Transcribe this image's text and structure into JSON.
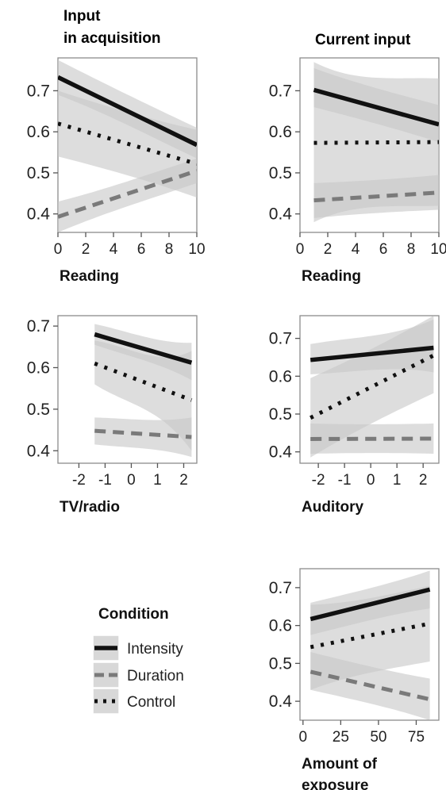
{
  "chart_data": [
    {
      "type": "line",
      "title": "Input\nin acquisition",
      "xlabel": "Reading",
      "xlim": [
        0,
        10
      ],
      "ylim": [
        0.355,
        0.78
      ],
      "xticks": [
        0,
        2,
        4,
        6,
        8,
        10
      ],
      "xtick_labels": [
        "0",
        "2",
        "4",
        "6",
        "8",
        "10"
      ],
      "yticks": [
        0.4,
        0.5,
        0.6,
        0.7
      ],
      "ytick_labels": [
        "0.4",
        "0.5",
        "0.6",
        "0.7"
      ],
      "x": [
        0,
        10
      ],
      "series": [
        {
          "name": "Intensity",
          "values": [
            0.733,
            0.568
          ],
          "ci_lower": [
            0.69,
            0.535
          ],
          "ci_upper": [
            0.775,
            0.61
          ]
        },
        {
          "name": "Duration",
          "values": [
            0.393,
            0.505
          ],
          "ci_lower": [
            0.355,
            0.475
          ],
          "ci_upper": [
            0.43,
            0.535
          ]
        },
        {
          "name": "Control",
          "values": [
            0.62,
            0.522
          ],
          "ci_lower": [
            0.54,
            0.44
          ],
          "ci_upper": [
            0.7,
            0.605
          ]
        }
      ]
    },
    {
      "type": "line",
      "title": "Current input",
      "xlabel": "Reading",
      "xlim": [
        0,
        10
      ],
      "ylim": [
        0.355,
        0.78
      ],
      "xticks": [
        0,
        2,
        4,
        6,
        8,
        10
      ],
      "xtick_labels": [
        "0",
        "2",
        "4",
        "6",
        "8",
        "10"
      ],
      "yticks": [
        0.4,
        0.5,
        0.6,
        0.7
      ],
      "ytick_labels": [
        "0.4",
        "0.5",
        "0.6",
        "0.7"
      ],
      "x": [
        1,
        10
      ],
      "series": [
        {
          "name": "Intensity",
          "values": [
            0.702,
            0.618
          ],
          "ci_lower": [
            0.66,
            0.575
          ],
          "ci_upper": [
            0.755,
            0.665
          ]
        },
        {
          "name": "Duration",
          "values": [
            0.433,
            0.452
          ],
          "ci_lower": [
            0.39,
            0.41
          ],
          "ci_upper": [
            0.475,
            0.495
          ]
        },
        {
          "name": "Control",
          "values": [
            0.573,
            0.575
          ],
          "ci_lower": [
            0.38,
            0.42
          ],
          "ci_upper": [
            0.77,
            0.73
          ]
        }
      ]
    },
    {
      "type": "line",
      "title": "",
      "xlabel": "TV/radio",
      "xlim": [
        -2.8,
        2.5
      ],
      "ylim": [
        0.37,
        0.725
      ],
      "xticks": [
        -2,
        -1,
        0,
        1,
        2
      ],
      "xtick_labels": [
        "-2",
        "-1",
        "0",
        "1",
        "2"
      ],
      "yticks": [
        0.4,
        0.5,
        0.6,
        0.7
      ],
      "ytick_labels": [
        "0.4",
        "0.5",
        "0.6",
        "0.7"
      ],
      "x": [
        -1.4,
        2.3
      ],
      "series": [
        {
          "name": "Intensity",
          "values": [
            0.68,
            0.612
          ],
          "ci_lower": [
            0.655,
            0.57
          ],
          "ci_upper": [
            0.705,
            0.66
          ]
        },
        {
          "name": "Duration",
          "values": [
            0.448,
            0.433
          ],
          "ci_lower": [
            0.415,
            0.385
          ],
          "ci_upper": [
            0.48,
            0.48
          ]
        },
        {
          "name": "Control",
          "values": [
            0.61,
            0.522
          ],
          "ci_lower": [
            0.56,
            0.4
          ],
          "ci_upper": [
            0.665,
            0.64
          ]
        }
      ]
    },
    {
      "type": "line",
      "title": "",
      "xlabel": "Auditory",
      "xlim": [
        -2.7,
        2.6
      ],
      "ylim": [
        0.37,
        0.76
      ],
      "xticks": [
        -2,
        -1,
        0,
        1,
        2
      ],
      "xtick_labels": [
        "-2",
        "-1",
        "0",
        "1",
        "2"
      ],
      "yticks": [
        0.4,
        0.5,
        0.6,
        0.7
      ],
      "ytick_labels": [
        "0.4",
        "0.5",
        "0.6",
        "0.7"
      ],
      "x": [
        -2.3,
        2.4
      ],
      "series": [
        {
          "name": "Intensity",
          "values": [
            0.643,
            0.675
          ],
          "ci_lower": [
            0.605,
            0.61
          ],
          "ci_upper": [
            0.685,
            0.75
          ]
        },
        {
          "name": "Duration",
          "values": [
            0.434,
            0.435
          ],
          "ci_lower": [
            0.395,
            0.395
          ],
          "ci_upper": [
            0.475,
            0.475
          ]
        },
        {
          "name": "Control",
          "values": [
            0.49,
            0.655
          ],
          "ci_lower": [
            0.385,
            0.555
          ],
          "ci_upper": [
            0.595,
            0.76
          ]
        }
      ]
    },
    {
      "type": "line",
      "title": "",
      "xlabel": "Amount of\nexposure",
      "xlim": [
        -2,
        90
      ],
      "ylim": [
        0.35,
        0.75
      ],
      "xticks": [
        0,
        25,
        50,
        75
      ],
      "xtick_labels": [
        "0",
        "25",
        "50",
        "75"
      ],
      "yticks": [
        0.4,
        0.5,
        0.6,
        0.7
      ],
      "ytick_labels": [
        "0.4",
        "0.5",
        "0.6",
        "0.7"
      ],
      "x": [
        5,
        84
      ],
      "series": [
        {
          "name": "Intensity",
          "values": [
            0.617,
            0.695
          ],
          "ci_lower": [
            0.575,
            0.645
          ],
          "ci_upper": [
            0.66,
            0.745
          ]
        },
        {
          "name": "Duration",
          "values": [
            0.478,
            0.405
          ],
          "ci_lower": [
            0.43,
            0.35
          ],
          "ci_upper": [
            0.53,
            0.46
          ]
        },
        {
          "name": "Control",
          "values": [
            0.543,
            0.605
          ],
          "ci_lower": [
            0.43,
            0.505
          ],
          "ci_upper": [
            0.655,
            0.705
          ]
        }
      ]
    }
  ],
  "legend": {
    "title": "Condition",
    "items": [
      {
        "label": "Intensity",
        "color": "#111111",
        "dash": "solid"
      },
      {
        "label": "Duration",
        "color": "#7a7a7a",
        "dash": "dashed"
      },
      {
        "label": "Control",
        "color": "#111111",
        "dash": "dotted"
      }
    ]
  },
  "colors": {
    "panel_background": "#ffffff",
    "panel_border": "#8c8c8c",
    "ribbon": "#c8c8c8",
    "intensity": "#111111",
    "duration": "#7a7a7a",
    "control": "#111111"
  }
}
